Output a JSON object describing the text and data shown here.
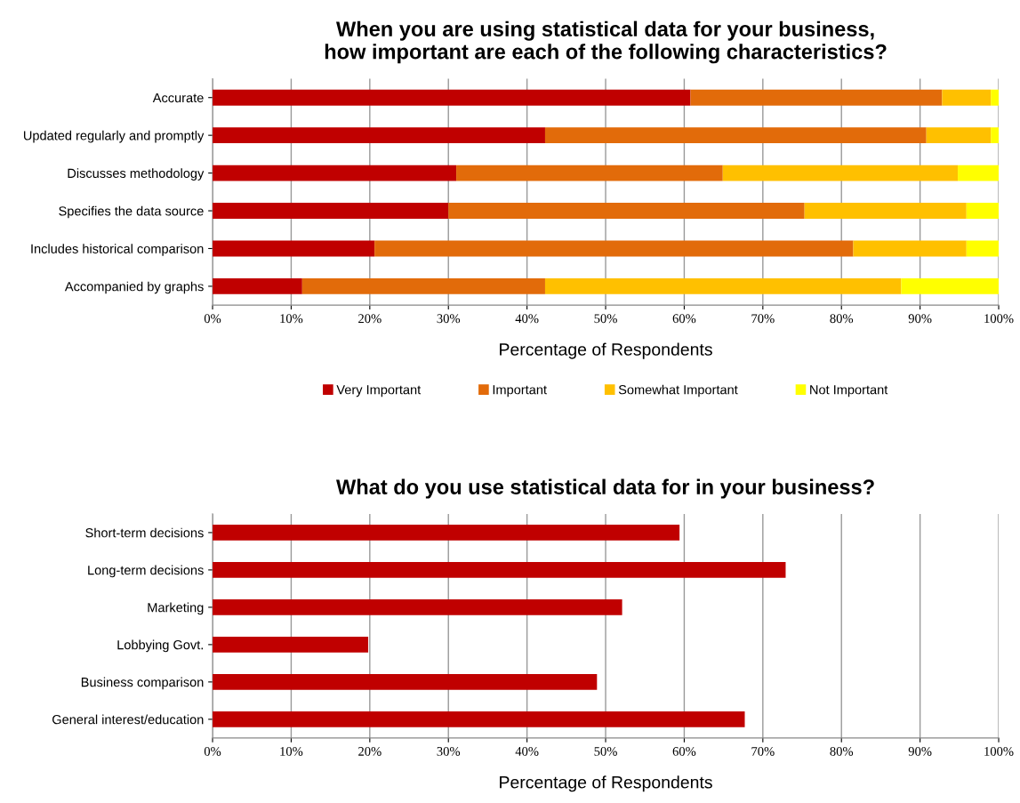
{
  "chart_data": [
    {
      "type": "bar",
      "orientation": "horizontal",
      "stacked": true,
      "title": "When you are using statistical data for your business,\nhow important are each of the following characteristics?",
      "xlabel": "Percentage of Respondents",
      "categories": [
        "Accurate",
        "Updated regularly and promptly",
        "Discusses methodology",
        "Specifies the data source",
        "Includes historical comparison",
        "Accompanied by graphs"
      ],
      "series": [
        {
          "name": "Very Important",
          "color": "#c00000",
          "values": [
            60.8,
            42.3,
            31.0,
            30.0,
            20.6,
            11.4
          ]
        },
        {
          "name": "Important",
          "color": "#e26b0a",
          "values": [
            32.0,
            48.5,
            33.9,
            45.3,
            60.9,
            30.9
          ]
        },
        {
          "name": "Somewhat Important",
          "color": "#ffc000",
          "values": [
            6.2,
            8.2,
            29.9,
            20.6,
            14.4,
            45.3
          ]
        },
        {
          "name": "Not Important",
          "color": "#ffff00",
          "values": [
            1.0,
            1.0,
            5.2,
            4.1,
            4.1,
            12.4
          ]
        }
      ],
      "xlim": [
        0,
        100
      ],
      "xticks": [
        {
          "value": 0,
          "label": "0%"
        },
        {
          "value": 10,
          "label": "10%"
        },
        {
          "value": 20,
          "label": "20%"
        },
        {
          "value": 30,
          "label": "30%"
        },
        {
          "value": 40,
          "label": "40%"
        },
        {
          "value": 50,
          "label": "50%"
        },
        {
          "value": 60,
          "label": "60%"
        },
        {
          "value": 70,
          "label": "70%"
        },
        {
          "value": 80,
          "label": "80%"
        },
        {
          "value": 90,
          "label": "90%"
        },
        {
          "value": 100,
          "label": "100%"
        }
      ],
      "grid": "x",
      "legend": "bottom"
    },
    {
      "type": "bar",
      "orientation": "horizontal",
      "title": "What do you use statistical data for in your business?",
      "xlabel": "Percentage of Respondents",
      "categories": [
        "Short-term decisions",
        "Long-term decisions",
        "Marketing",
        "Lobbying Govt.",
        "Business comparison",
        "General interest/education"
      ],
      "series": [
        {
          "color": "#c00000",
          "values": [
            59.4,
            72.9,
            52.1,
            19.8,
            48.9,
            67.7
          ]
        }
      ],
      "xlim": [
        0,
        100
      ],
      "xticks": [
        {
          "value": 0,
          "label": "0%"
        },
        {
          "value": 10,
          "label": "10%"
        },
        {
          "value": 20,
          "label": "20%"
        },
        {
          "value": 30,
          "label": "30%"
        },
        {
          "value": 40,
          "label": "40%"
        },
        {
          "value": 50,
          "label": "50%"
        },
        {
          "value": 60,
          "label": "60%"
        },
        {
          "value": 70,
          "label": "70%"
        },
        {
          "value": 80,
          "label": "80%"
        },
        {
          "value": 90,
          "label": "90%"
        },
        {
          "value": 100,
          "label": "100%"
        }
      ],
      "grid": "x"
    }
  ]
}
